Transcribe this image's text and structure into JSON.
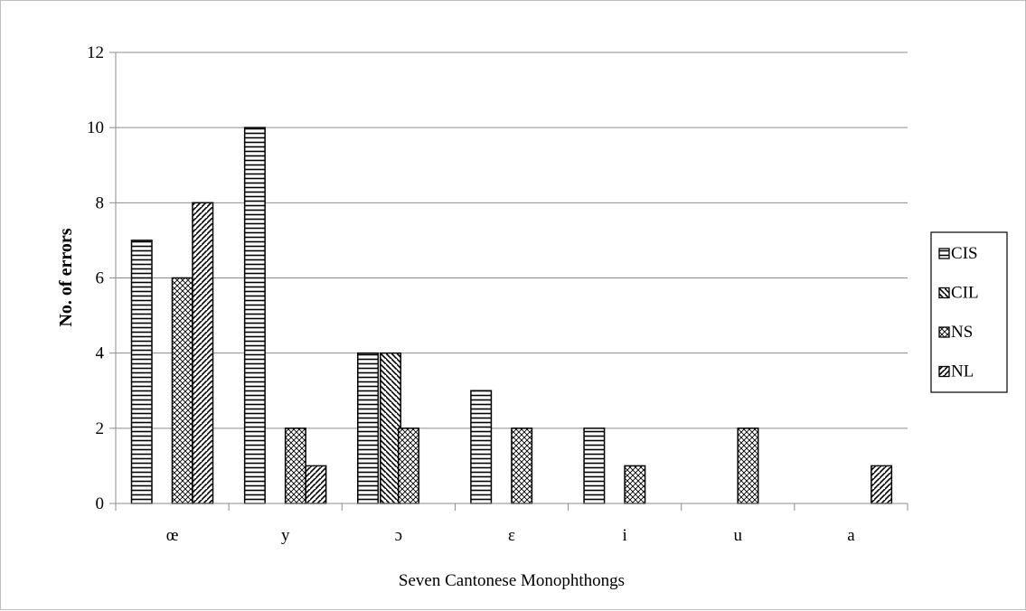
{
  "chart_data": {
    "type": "bar",
    "title": "",
    "xlabel": "Seven Cantonese Monophthongs",
    "ylabel": "No. of errors",
    "ylim": [
      0,
      12
    ],
    "yticks": [
      "0",
      "2",
      "4",
      "6",
      "8",
      "10",
      "12"
    ],
    "grid": true,
    "legend_position": "right",
    "categories": [
      "œ",
      "y",
      "ɔ",
      "ɛ",
      "i",
      "u",
      "a"
    ],
    "series": [
      {
        "name": "CIS",
        "pattern": "horizontal-lines",
        "values": [
          7,
          10,
          4,
          3,
          2,
          0,
          0
        ]
      },
      {
        "name": "CIL",
        "pattern": "diagonal-down",
        "values": [
          0,
          0,
          4,
          0,
          0,
          0,
          0
        ]
      },
      {
        "name": "NS",
        "pattern": "crosshatch",
        "values": [
          6,
          2,
          2,
          2,
          1,
          2,
          0
        ]
      },
      {
        "name": "NL",
        "pattern": "diagonal-up",
        "values": [
          8,
          1,
          0,
          0,
          0,
          0,
          1
        ]
      }
    ],
    "colors": {
      "stroke": "#000000",
      "grid": "#8c8c8c",
      "background": "#ffffff"
    }
  }
}
